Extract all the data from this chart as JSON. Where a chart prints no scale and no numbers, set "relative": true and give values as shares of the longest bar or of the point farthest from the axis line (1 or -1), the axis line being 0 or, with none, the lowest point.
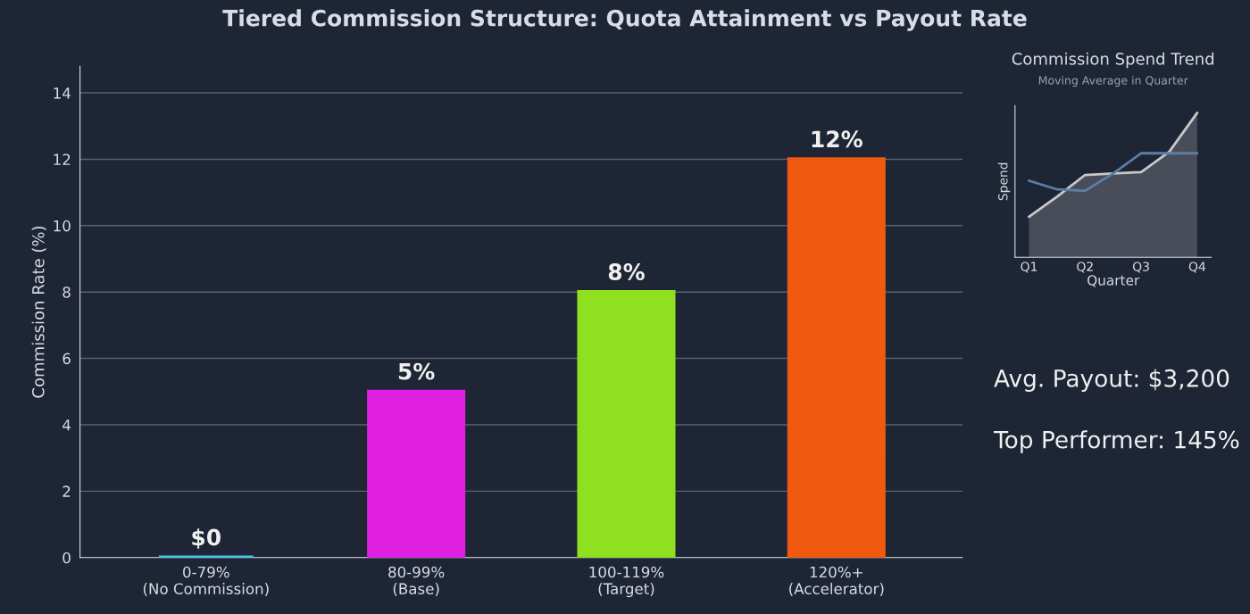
{
  "chart_data": [
    {
      "type": "bar",
      "title": "Tiered Commission Structure: Quota Attainment vs Payout Rate",
      "ylabel": "Commission Rate (%)",
      "categories": [
        "0-79%\n(No Commission)",
        "80-99%\n(Base)",
        "100-119%\n(Target)",
        "120%+\n(Accelerator)"
      ],
      "values": [
        0,
        5,
        8,
        12
      ],
      "colors": [
        "#3ec6f0",
        "#e020e0",
        "#8ee020",
        "#f05a10"
      ],
      "value_labels": [
        "$0",
        "5%",
        "8%",
        "12%"
      ],
      "ylim": [
        0,
        14.8
      ],
      "yticks": [
        0,
        2,
        4,
        6,
        8,
        10,
        12,
        14
      ],
      "grid": "y"
    },
    {
      "type": "line",
      "title": "Commission Spend Trend",
      "subtitle": "Moving Average in Quarter",
      "xlabel": "Quarter",
      "ylabel": "Spend",
      "relative": true,
      "categories": [
        "Q1",
        null,
        "Q2",
        null,
        "Q3",
        null,
        "Q4"
      ],
      "series": [
        {
          "type": "area",
          "color": "#c8c8c8",
          "values": [
            0.28,
            0.42,
            0.57,
            0.58,
            0.59,
            0.73,
            1.0
          ]
        },
        {
          "type": "line",
          "color": "#5b7fa8",
          "values": [
            0.53,
            0.47,
            0.46,
            0.58,
            0.72,
            0.72,
            0.72
          ]
        }
      ]
    },
    {
      "type": "other",
      "annotations": [
        "Avg. Payout: $3,200",
        "Top Performer: 145%"
      ]
    }
  ]
}
